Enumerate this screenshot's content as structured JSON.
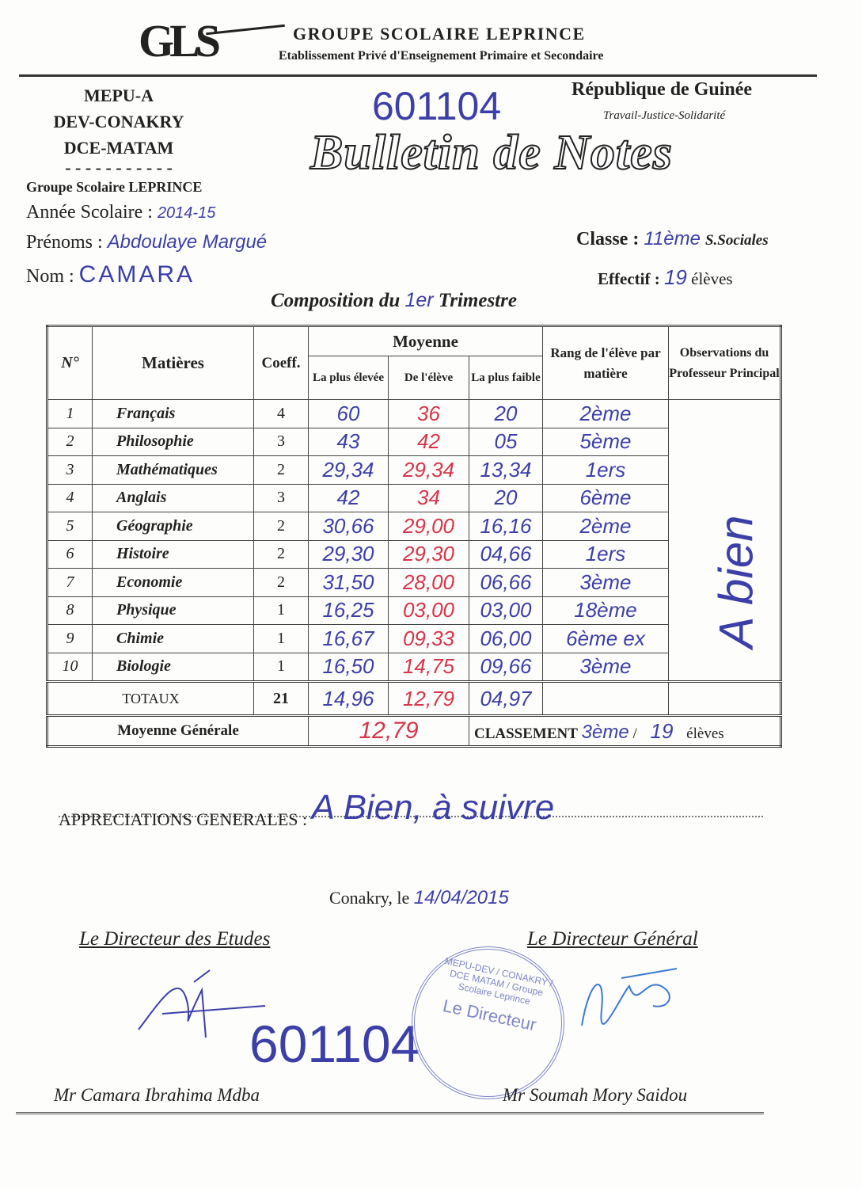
{
  "header": {
    "logo": "GLS",
    "school": "GROUPE SCOLAIRE LEPRINCE",
    "subtitle": "Etablissement Privé d'Enseignement Primaire et Secondaire"
  },
  "left_block": {
    "lines": [
      "MEPU-A",
      "DEV-CONAKRY",
      "DCE-MATAM"
    ],
    "dashes": "- - - - - - - - - - -",
    "school": "Groupe Scolaire LEPRINCE"
  },
  "right_block": {
    "country": "République de Guinée",
    "motto": "Travail-Justice-Solidarité"
  },
  "id_number": "601104",
  "title": "Bulletin de Notes",
  "student": {
    "annee_label": "Année Scolaire :",
    "annee": "2014-15",
    "prenoms_label": "Prénoms :",
    "prenoms": "Abdoulaye Margué",
    "nom_label": "Nom :",
    "nom": "CAMARA",
    "classe_label": "Classe :",
    "classe_num": "11ème",
    "classe_serie": "S.Sociales",
    "effectif_label": "Effectif :",
    "effectif": "19",
    "effectif_unit": "élèves"
  },
  "composition": {
    "before": "Composition du",
    "num": "1er",
    "after": "Trimestre"
  },
  "table": {
    "headers": {
      "n": "N°",
      "matieres": "Matières",
      "coeff": "Coeff.",
      "moyenne": "Moyenne",
      "plus_elevee": "La plus élevée",
      "de_eleve": "De l'élève",
      "plus_faible": "La plus faible",
      "rang": "Rang de l'élève par matière",
      "observations": "Observations du Professeur Principal"
    },
    "rows": [
      {
        "n": "1",
        "matiere": "Français",
        "coeff": "4",
        "max": "60",
        "eleve": "36",
        "min": "20",
        "rang": "2ème"
      },
      {
        "n": "2",
        "matiere": "Philosophie",
        "coeff": "3",
        "max": "43",
        "eleve": "42",
        "min": "05",
        "rang": "5ème"
      },
      {
        "n": "3",
        "matiere": "Mathématiques",
        "coeff": "2",
        "max": "29,34",
        "eleve": "29,34",
        "min": "13,34",
        "rang": "1ers"
      },
      {
        "n": "4",
        "matiere": "Anglais",
        "coeff": "3",
        "max": "42",
        "eleve": "34",
        "min": "20",
        "rang": "6ème"
      },
      {
        "n": "5",
        "matiere": "Géographie",
        "coeff": "2",
        "max": "30,66",
        "eleve": "29,00",
        "min": "16,16",
        "rang": "2ème"
      },
      {
        "n": "6",
        "matiere": "Histoire",
        "coeff": "2",
        "max": "29,30",
        "eleve": "29,30",
        "min": "04,66",
        "rang": "1ers"
      },
      {
        "n": "7",
        "matiere": "Economie",
        "coeff": "2",
        "max": "31,50",
        "eleve": "28,00",
        "min": "06,66",
        "rang": "3ème"
      },
      {
        "n": "8",
        "matiere": "Physique",
        "coeff": "1",
        "max": "16,25",
        "eleve": "03,00",
        "min": "03,00",
        "rang": "18ème"
      },
      {
        "n": "9",
        "matiere": "Chimie",
        "coeff": "1",
        "max": "16,67",
        "eleve": "09,33",
        "min": "06,00",
        "rang": "6ème ex"
      },
      {
        "n": "10",
        "matiere": "Biologie",
        "coeff": "1",
        "max": "16,50",
        "eleve": "14,75",
        "min": "09,66",
        "rang": "3ème"
      }
    ],
    "observation": "A bien",
    "totaux": {
      "label": "TOTAUX",
      "coeff": "21",
      "max": "14,96",
      "eleve": "12,79",
      "min": "04,97"
    },
    "moyenne_generale": {
      "label": "Moyenne Générale",
      "value": "12,79",
      "classement_label": "CLASSEMENT",
      "rang": "3ème",
      "sep": "/",
      "effectif": "19",
      "unit": "élèves"
    }
  },
  "appreciations": {
    "label": "APPRECIATIONS GENERALES :",
    "value": "A Bien, à suivre"
  },
  "date": {
    "label": "Conakry, le",
    "value": "14/04/2015"
  },
  "signatures": {
    "left_title": "Le Directeur des Etudes",
    "left_name": "Mr Camara Ibrahima Mdba",
    "right_title": "Le Directeur Général",
    "right_name": "Mr Soumah Mory Saidou",
    "stamp_ring": "MEPU-DEV / CONAKRY / DCE MATAM / Groupe Scolaire Leprince",
    "stamp_center": "Le Directeur",
    "number": "601104"
  },
  "colors": {
    "ink_blue": "#3c3fa8",
    "ink_red": "#d8344a",
    "stamp": "#7f86c8"
  }
}
